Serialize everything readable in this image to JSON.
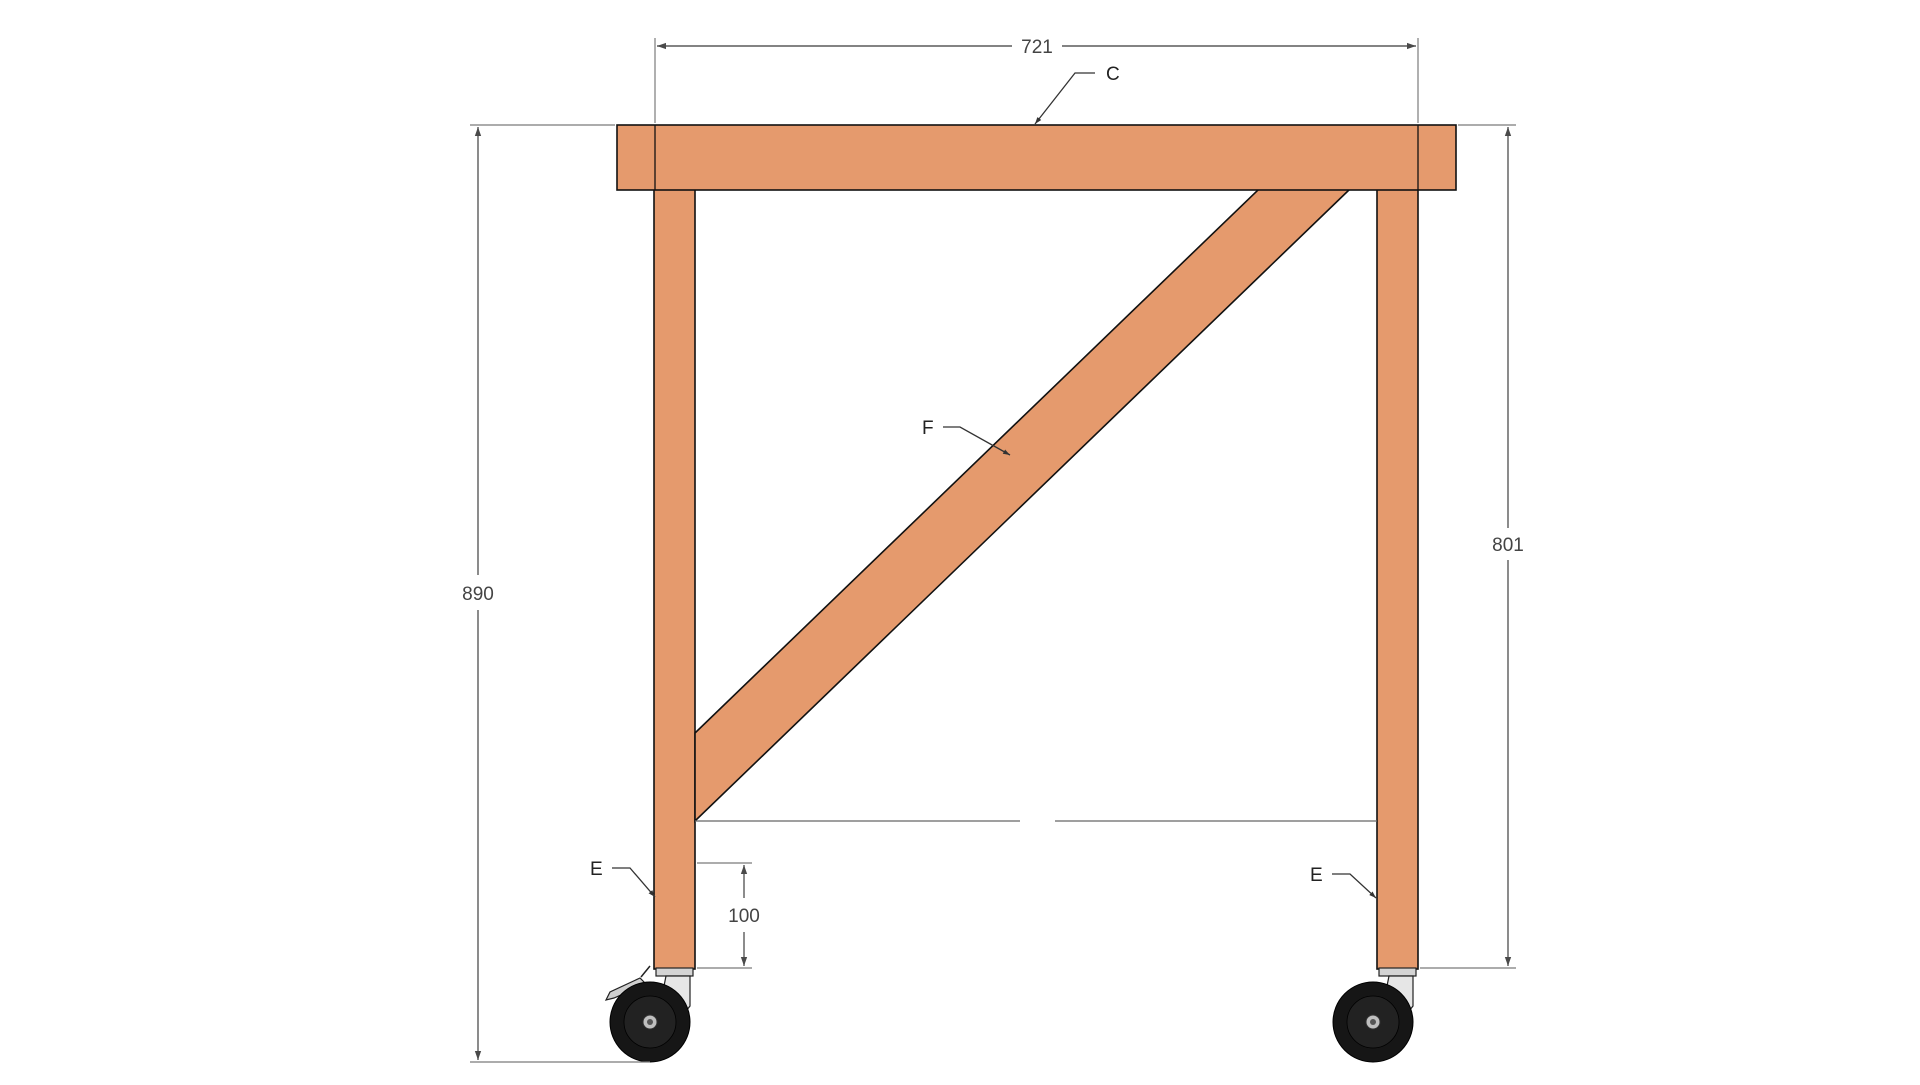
{
  "drawing": {
    "colors": {
      "wood": "#E59A6D",
      "outline": "#111111",
      "dimension": "#5a5a5a",
      "wheel": "#161616",
      "caster_metal": "#d4d4d4"
    },
    "dimensions": {
      "top_width": "721",
      "overall_height": "890",
      "leg_height": "801",
      "caster_clearance": "100"
    },
    "part_labels": {
      "top_rail": "C",
      "diagonal_brace": "F",
      "leg_left": "E",
      "leg_right": "E"
    }
  }
}
